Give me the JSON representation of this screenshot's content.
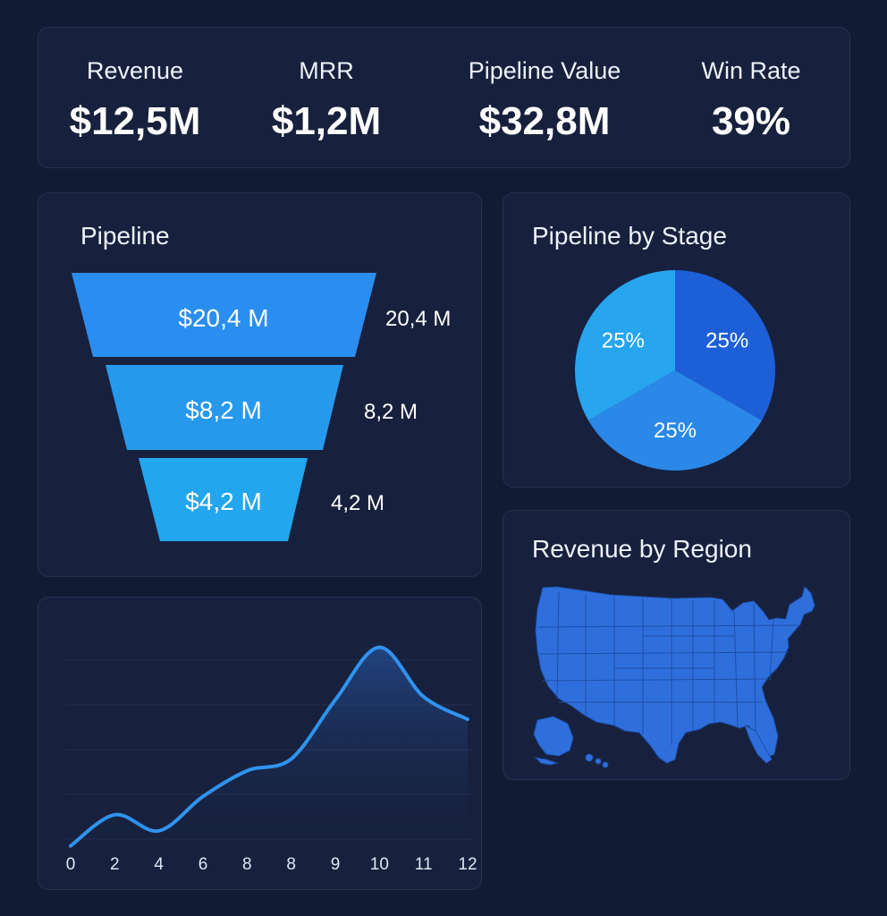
{
  "kpis": [
    {
      "label": "Revenue",
      "value": "$12,5M"
    },
    {
      "label": "MRR",
      "value": "$1,2M"
    },
    {
      "label": "Pipeline Value",
      "value": "$32,8M"
    },
    {
      "label": "Win Rate",
      "value": "39%"
    }
  ],
  "funnel": {
    "title": "Pipeline",
    "stages": [
      {
        "inner_label": "$20,4 M",
        "side_label": "20,4 M",
        "value": 20.4
      },
      {
        "inner_label": "$8,2 M",
        "side_label": "8,2 M",
        "value": 8.2
      },
      {
        "inner_label": "$4,2 M",
        "side_label": "4,2 M",
        "value": 4.2
      }
    ]
  },
  "stage": {
    "title": "Pipeline by Stage"
  },
  "region": {
    "title": "Revenue by Region",
    "map_icon": "usa-map-icon"
  },
  "colors": {
    "background": "#121b34",
    "card": "#17213d",
    "funnel": [
      "#2a8ef0",
      "#2699ec",
      "#22a6ee"
    ],
    "pie": [
      "#1d5fd6",
      "#2a88e8",
      "#27a5ef"
    ],
    "map": "#2f6fdc",
    "line": "#2f93ee"
  },
  "chart_data": [
    {
      "type": "pie",
      "title": "Pipeline by Stage",
      "slices": [
        {
          "label": "25%",
          "value": 25
        },
        {
          "label": "25%",
          "value": 25
        },
        {
          "label": "25%",
          "value": 25
        }
      ]
    },
    {
      "type": "line",
      "title": "",
      "xlabel": "",
      "ylabel": "",
      "tick_labels": [
        "0",
        "2",
        "4",
        "6",
        "8",
        "8",
        "9",
        "10",
        "11",
        "12"
      ],
      "x": [
        0,
        1,
        2,
        3,
        4,
        5,
        6,
        7,
        8,
        9
      ],
      "values": [
        2,
        31,
        16,
        48,
        72,
        83,
        138,
        187,
        141,
        120
      ],
      "ylim": [
        0,
        200
      ],
      "grid": true
    }
  ]
}
